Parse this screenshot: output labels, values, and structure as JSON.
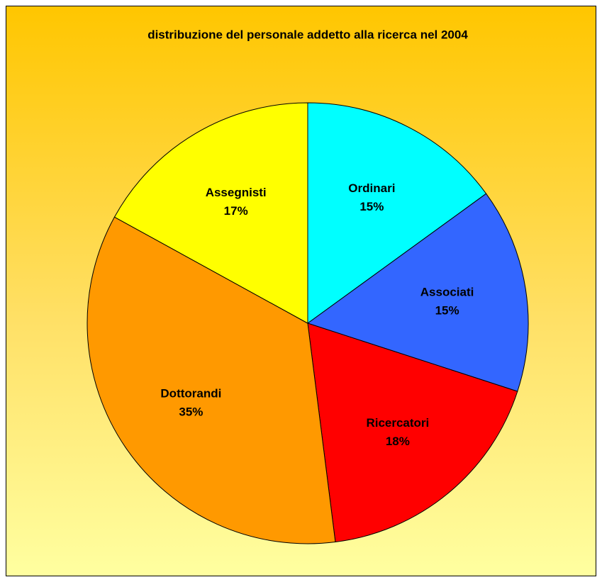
{
  "chart_data": {
    "type": "pie",
    "title": "distribuzione del personale addetto alla ricerca nel 2004",
    "categories": [
      "Ordinari",
      "Associati",
      "Ricercatori",
      "Dottorandi",
      "Assegnisti"
    ],
    "values": [
      15,
      15,
      18,
      35,
      17
    ],
    "value_labels": [
      "15%",
      "15%",
      "18%",
      "35%",
      "17%"
    ],
    "colors": [
      "#00ffff",
      "#3366ff",
      "#ff0000",
      "#ff9900",
      "#ffff00"
    ]
  }
}
